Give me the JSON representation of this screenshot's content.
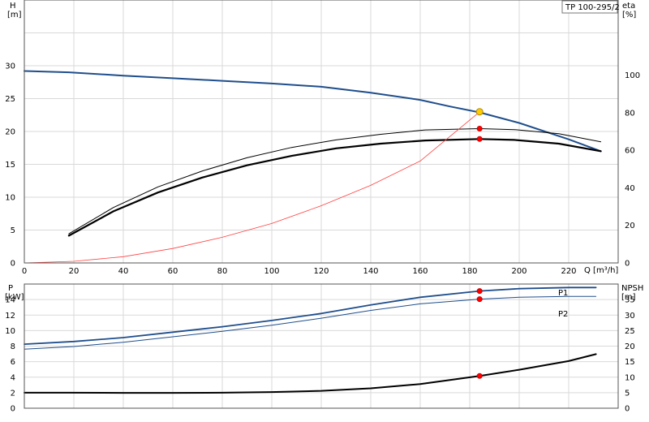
{
  "chart_data": [
    {
      "type": "line",
      "model_label": "TP 100-295/2",
      "x_axis": {
        "label": "Q [m³/h]",
        "range": [
          0,
          240
        ],
        "ticks": [
          0,
          20,
          40,
          60,
          80,
          100,
          120,
          140,
          160,
          180,
          200,
          220
        ]
      },
      "y_left": {
        "label": "H",
        "unit": "[m]",
        "range": [
          0,
          40
        ],
        "ticks": [
          0,
          5,
          10,
          15,
          20,
          25,
          30
        ]
      },
      "y_right": {
        "label": "eta",
        "unit": "[%]",
        "range": [
          0,
          140
        ],
        "ticks": [
          0,
          20,
          40,
          60,
          80,
          100
        ]
      },
      "grid": true,
      "series": [
        {
          "axis": "left",
          "color": "#1f4e8c",
          "width": 2,
          "x": [
            0,
            18,
            40,
            60,
            80,
            100,
            120,
            140,
            160,
            172,
            184,
            200,
            220,
            233
          ],
          "y": [
            29.2,
            29.0,
            28.5,
            28.1,
            27.7,
            27.3,
            26.8,
            25.9,
            24.8,
            23.8,
            22.9,
            21.3,
            18.8,
            17.0
          ]
        },
        {
          "axis": "right",
          "color": "#000000",
          "width": 2.2,
          "x": [
            18,
            36,
            54,
            72,
            90,
            108,
            126,
            144,
            162,
            184,
            198,
            216,
            233
          ],
          "y": [
            14.5,
            27.5,
            37.5,
            45.5,
            52,
            57,
            61,
            63.5,
            65.2,
            66,
            65.5,
            63.5,
            59.5
          ]
        },
        {
          "axis": "right",
          "color": "#000000",
          "width": 1,
          "x": [
            18,
            36,
            54,
            72,
            90,
            108,
            126,
            144,
            162,
            184,
            198,
            216,
            233
          ],
          "y": [
            15.5,
            29.5,
            40.5,
            49,
            56,
            61.5,
            65.5,
            68.5,
            70.8,
            71.5,
            71,
            68.8,
            64.5
          ]
        },
        {
          "axis": "left",
          "color": "#ff4040",
          "width": 0.8,
          "x": [
            0,
            20,
            40,
            60,
            80,
            100,
            120,
            140,
            160,
            185
          ],
          "y": [
            0,
            0.25,
            0.95,
            2.2,
            3.9,
            6.0,
            8.7,
            11.8,
            15.5,
            23.3
          ]
        }
      ],
      "points": [
        {
          "axis": "left",
          "x": 184,
          "y": 23.0,
          "color": "#ffcc00",
          "r": 4,
          "stroke": "#b08800"
        },
        {
          "axis": "right",
          "x": 184,
          "y": 71.5,
          "color": "#ff0000",
          "r": 3,
          "stroke": "#cc0000"
        },
        {
          "axis": "right",
          "x": 184,
          "y": 66.0,
          "color": "#ff0000",
          "r": 3,
          "stroke": "#cc0000"
        }
      ]
    },
    {
      "type": "line",
      "x_axis": {
        "range": [
          0,
          240
        ]
      },
      "y_left": {
        "label": "P",
        "unit": "[kW]",
        "range": [
          0,
          16
        ],
        "ticks": [
          0,
          2,
          4,
          6,
          8,
          10,
          12,
          14
        ]
      },
      "y_right": {
        "label": "NPSH",
        "unit": "[m]",
        "range": [
          0,
          40
        ],
        "ticks": [
          0,
          5,
          10,
          15,
          20,
          25,
          30,
          35
        ]
      },
      "grid": true,
      "series": [
        {
          "name": "P1",
          "axis": "left",
          "color": "#1f4e8c",
          "width": 1.8,
          "x": [
            0,
            20,
            40,
            60,
            80,
            100,
            120,
            140,
            160,
            184,
            200,
            220,
            231
          ],
          "y": [
            8.25,
            8.6,
            9.1,
            9.8,
            10.5,
            11.3,
            12.2,
            13.3,
            14.3,
            15.1,
            15.4,
            15.55,
            15.55
          ]
        },
        {
          "name": "P2",
          "axis": "left",
          "color": "#1f4e8c",
          "width": 1,
          "x": [
            0,
            20,
            40,
            60,
            80,
            100,
            120,
            140,
            160,
            184,
            200,
            220,
            231
          ],
          "y": [
            7.6,
            7.95,
            8.5,
            9.2,
            9.9,
            10.7,
            11.6,
            12.6,
            13.45,
            14.05,
            14.3,
            14.4,
            14.4
          ]
        },
        {
          "axis": "right",
          "color": "#000000",
          "width": 2,
          "x": [
            0,
            18,
            40,
            60,
            80,
            100,
            120,
            140,
            160,
            184,
            200,
            220,
            231
          ],
          "y": [
            5.0,
            5.0,
            4.95,
            4.95,
            5.0,
            5.2,
            5.6,
            6.4,
            7.8,
            10.4,
            12.4,
            15.2,
            17.4
          ]
        }
      ],
      "points": [
        {
          "axis": "left",
          "x": 184,
          "y": 15.1,
          "color": "#ff0000",
          "r": 3,
          "stroke": "#cc0000"
        },
        {
          "axis": "left",
          "x": 184,
          "y": 14.05,
          "color": "#ff0000",
          "r": 3,
          "stroke": "#cc0000"
        },
        {
          "axis": "right",
          "x": 184,
          "y": 10.4,
          "color": "#ff0000",
          "r": 3,
          "stroke": "#cc0000"
        }
      ]
    }
  ]
}
